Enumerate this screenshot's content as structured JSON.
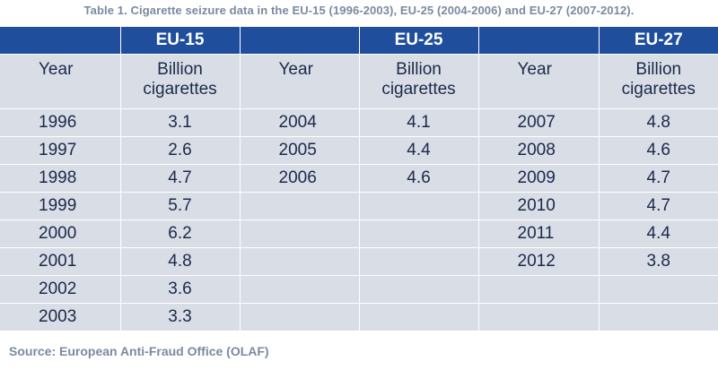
{
  "caption": "Table 1. Cigarette seizure data in the EU-15 (1996-2003), EU-25 (2004-2006) and EU-27 (2007-2012).",
  "groups": [
    "EU-15",
    "EU-25",
    "EU-27"
  ],
  "col_year": "Year",
  "col_value": "Billion cigarettes",
  "rows": [
    [
      [
        "1996",
        "3.1"
      ],
      [
        "2004",
        "4.1"
      ],
      [
        "2007",
        "4.8"
      ]
    ],
    [
      [
        "1997",
        "2.6"
      ],
      [
        "2005",
        "4.4"
      ],
      [
        "2008",
        "4.6"
      ]
    ],
    [
      [
        "1998",
        "4.7"
      ],
      [
        "2006",
        "4.6"
      ],
      [
        "2009",
        "4.7"
      ]
    ],
    [
      [
        "1999",
        "5.7"
      ],
      [
        "",
        ""
      ],
      [
        "2010",
        "4.7"
      ]
    ],
    [
      [
        "2000",
        "6.2"
      ],
      [
        "",
        ""
      ],
      [
        "2011",
        "4.4"
      ]
    ],
    [
      [
        "2001",
        "4.8"
      ],
      [
        "",
        ""
      ],
      [
        "2012",
        "3.8"
      ]
    ],
    [
      [
        "2002",
        "3.6"
      ],
      [
        "",
        ""
      ],
      [
        "",
        ""
      ]
    ],
    [
      [
        "2003",
        "3.3"
      ],
      [
        "",
        ""
      ],
      [
        "",
        ""
      ]
    ]
  ],
  "source": "Source: European Anti-Fraud Office (OLAF)"
}
